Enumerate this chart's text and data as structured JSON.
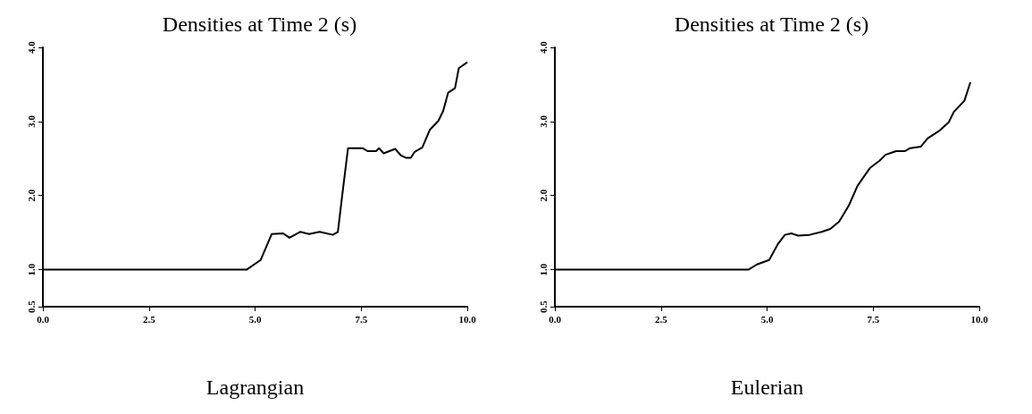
{
  "chart_data": [
    {
      "type": "line",
      "title": "Densities at Time 2 (s)",
      "xlabel": "Lagrangian",
      "xlim": [
        0,
        10
      ],
      "xticks": [
        {
          "value": 0,
          "label": "0.0"
        },
        {
          "value": 2.5,
          "label": "2.5"
        },
        {
          "value": 5,
          "label": "5.0"
        },
        {
          "value": 7.5,
          "label": "7.5"
        },
        {
          "value": 10,
          "label": "10.0"
        }
      ],
      "ylim": [
        0.5,
        4
      ],
      "yticks": [
        {
          "value": 0.5,
          "label": "0.5"
        },
        {
          "value": 1,
          "label": "1.0"
        },
        {
          "value": 2,
          "label": "2.0"
        },
        {
          "value": 3,
          "label": "3.0"
        },
        {
          "value": 4,
          "label": "4.0"
        }
      ],
      "grid": false,
      "marker": "none",
      "line_style": "solid",
      "series": [
        {
          "color": "#000000",
          "x": [
            0,
            4.8,
            5.13,
            5.39,
            5.66,
            5.81,
            6.06,
            6.27,
            6.52,
            6.83,
            6.95,
            7.08,
            7.19,
            7.53,
            7.65,
            7.85,
            7.92,
            8.03,
            8.3,
            8.44,
            8.55,
            8.67,
            8.76,
            8.94,
            9.12,
            9.32,
            9.43,
            9.55,
            9.71,
            9.8,
            10.0
          ],
          "values": [
            1.0,
            1.0,
            1.13,
            1.48,
            1.49,
            1.43,
            1.51,
            1.48,
            1.51,
            1.47,
            1.51,
            2.13,
            2.64,
            2.64,
            2.6,
            2.6,
            2.64,
            2.57,
            2.63,
            2.54,
            2.51,
            2.51,
            2.59,
            2.65,
            2.89,
            3.01,
            3.14,
            3.39,
            3.45,
            3.72,
            3.8
          ]
        }
      ]
    },
    {
      "type": "line",
      "title": "Densities at Time 2 (s)",
      "xlabel": "Eulerian",
      "xlim": [
        0,
        10
      ],
      "xticks": [
        {
          "value": 0,
          "label": "0.0"
        },
        {
          "value": 2.5,
          "label": "2.5"
        },
        {
          "value": 5,
          "label": "5.0"
        },
        {
          "value": 7.5,
          "label": "7.5"
        },
        {
          "value": 10,
          "label": "10.0"
        }
      ],
      "ylim": [
        0.5,
        4
      ],
      "yticks": [
        {
          "value": 0.5,
          "label": "0.5"
        },
        {
          "value": 1,
          "label": "1.0"
        },
        {
          "value": 2,
          "label": "2.0"
        },
        {
          "value": 3,
          "label": "3.0"
        },
        {
          "value": 4,
          "label": "4.0"
        }
      ],
      "grid": false,
      "marker": "none",
      "line_style": "solid",
      "series": [
        {
          "color": "#000000",
          "x": [
            0,
            4.56,
            4.76,
            5.05,
            5.26,
            5.42,
            5.57,
            5.73,
            6.0,
            6.29,
            6.49,
            6.7,
            6.93,
            7.13,
            7.42,
            7.65,
            7.79,
            8.04,
            8.25,
            8.37,
            8.62,
            8.78,
            9.07,
            9.28,
            9.4,
            9.65,
            9.79
          ],
          "values": [
            1.0,
            1.0,
            1.07,
            1.13,
            1.35,
            1.47,
            1.49,
            1.46,
            1.47,
            1.51,
            1.55,
            1.65,
            1.87,
            2.13,
            2.37,
            2.47,
            2.55,
            2.6,
            2.6,
            2.64,
            2.66,
            2.77,
            2.88,
            2.99,
            3.13,
            3.28,
            3.53
          ]
        }
      ]
    }
  ]
}
